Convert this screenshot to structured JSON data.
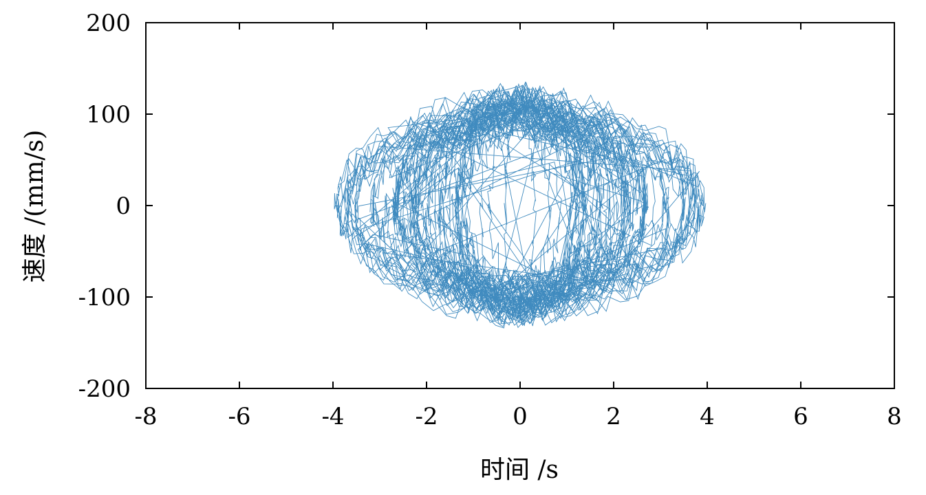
{
  "chart_data": {
    "type": "line",
    "xlabel": "时间 /s",
    "ylabel": "速度 /(mm/s)",
    "xlim": [
      -8,
      8
    ],
    "ylim": [
      -200,
      200
    ],
    "xticks": [
      -8,
      -6,
      -4,
      -2,
      0,
      2,
      4,
      6,
      8
    ],
    "yticks": [
      200,
      100,
      0,
      -100,
      -200
    ],
    "grid": false,
    "series": [
      {
        "color": "#1f77b4",
        "trace": {
          "cycles": 60,
          "points_per_cycle": 90,
          "x_amplitude_range": [
            0.2,
            3.95
          ],
          "x_center": 0,
          "y_amplitude_range": [
            40,
            120
          ],
          "y_noise": 18,
          "x_noise": 0.05
        },
        "points": [
          [
            -3.9,
            0
          ],
          [
            -3.6,
            60
          ],
          [
            -3.0,
            95
          ],
          [
            -2.0,
            115
          ],
          [
            -1.0,
            125
          ],
          [
            0,
            128
          ],
          [
            1.0,
            125
          ],
          [
            2.0,
            118
          ],
          [
            3.0,
            95
          ],
          [
            3.6,
            60
          ],
          [
            3.9,
            0
          ],
          [
            3.6,
            -60
          ],
          [
            3.0,
            -95
          ],
          [
            2.0,
            -115
          ],
          [
            1.0,
            -125
          ],
          [
            0,
            -130
          ],
          [
            -1.0,
            -125
          ],
          [
            -2.0,
            -115
          ],
          [
            -3.0,
            -95
          ],
          [
            -3.6,
            -60
          ],
          [
            -3.9,
            0
          ]
        ]
      }
    ]
  }
}
